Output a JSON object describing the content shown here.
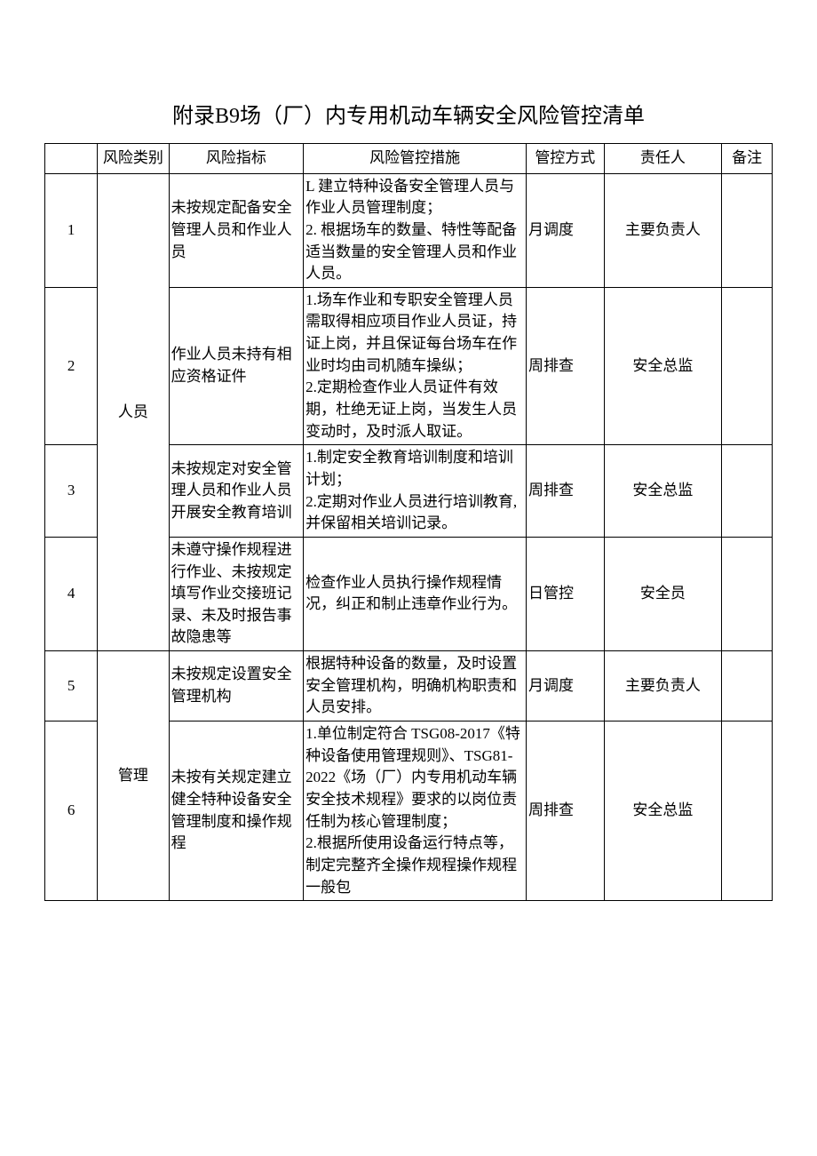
{
  "title_prefix": "附录",
  "title_code": "B9",
  "title_main": "场（厂）内专用机动车辆安全风险管控清单",
  "headers": {
    "num": "",
    "category": "风险类别",
    "indicator": "风险指标",
    "measure": "风险管控措施",
    "control": "管控方式",
    "responsible": "责任人",
    "note": "备注"
  },
  "categories": {
    "cat1": "人员",
    "cat2": "管理"
  },
  "rows": [
    {
      "num": "1",
      "indicator": "未按规定配备安全管理人员和作业人员",
      "measure": "L 建立特种设备安全管理人员与作业人员管理制度；\n2. 根据场车的数量、特性等配备适当数量的安全管理人员和作业人员。",
      "control": "月调度",
      "responsible": "主要负责人",
      "note": ""
    },
    {
      "num": "2",
      "indicator": "作业人员未持有相应资格证件",
      "measure": "1.场车作业和专职安全管理人员需取得相应项目作业人员证，持证上岗，并且保证每台场车在作业时均由司机随车操纵；\n2.定期检查作业人员证件有效期，杜绝无证上岗，当发生人员变动时，及时派人取证。",
      "control": "周排查",
      "responsible": "安全总监",
      "note": ""
    },
    {
      "num": "3",
      "indicator": "未按规定对安全管理人员和作业人员开展安全教育培训",
      "measure": "1.制定安全教育培训制度和培训计划；\n2.定期对作业人员进行培训教育,并保留相关培训记录。",
      "control": "周排查",
      "responsible": "安全总监",
      "note": ""
    },
    {
      "num": "4",
      "indicator": "未遵守操作规程进行作业、未按规定填写作业交接班记录、未及时报告事故隐患等",
      "measure": "检查作业人员执行操作规程情况，纠正和制止违章作业行为。",
      "control": "日管控",
      "responsible": "安全员",
      "note": ""
    },
    {
      "num": "5",
      "indicator": "未按规定设置安全管理机构",
      "measure": "根据特种设备的数量，及时设置安全管理机构，明确机构职责和人员安排。",
      "control": "月调度",
      "responsible": "主要负责人",
      "note": ""
    },
    {
      "num": "6",
      "indicator": "未按有关规定建立健全特种设备安全管理制度和操作规程",
      "measure": "1.单位制定符合 TSG08-2017《特种设备使用管理规则》、TSG81-2022《场（厂）内专用机动车辆安全技术规程》要求的以岗位责任制为核心管理制度；\n2.根据所使用设备运行特点等，制定完整齐全操作规程操作规程一般包",
      "control": "周排查",
      "responsible": "安全总监",
      "note": ""
    }
  ],
  "colors": {
    "text": "#000000",
    "border": "#000000",
    "background": "#ffffff"
  }
}
